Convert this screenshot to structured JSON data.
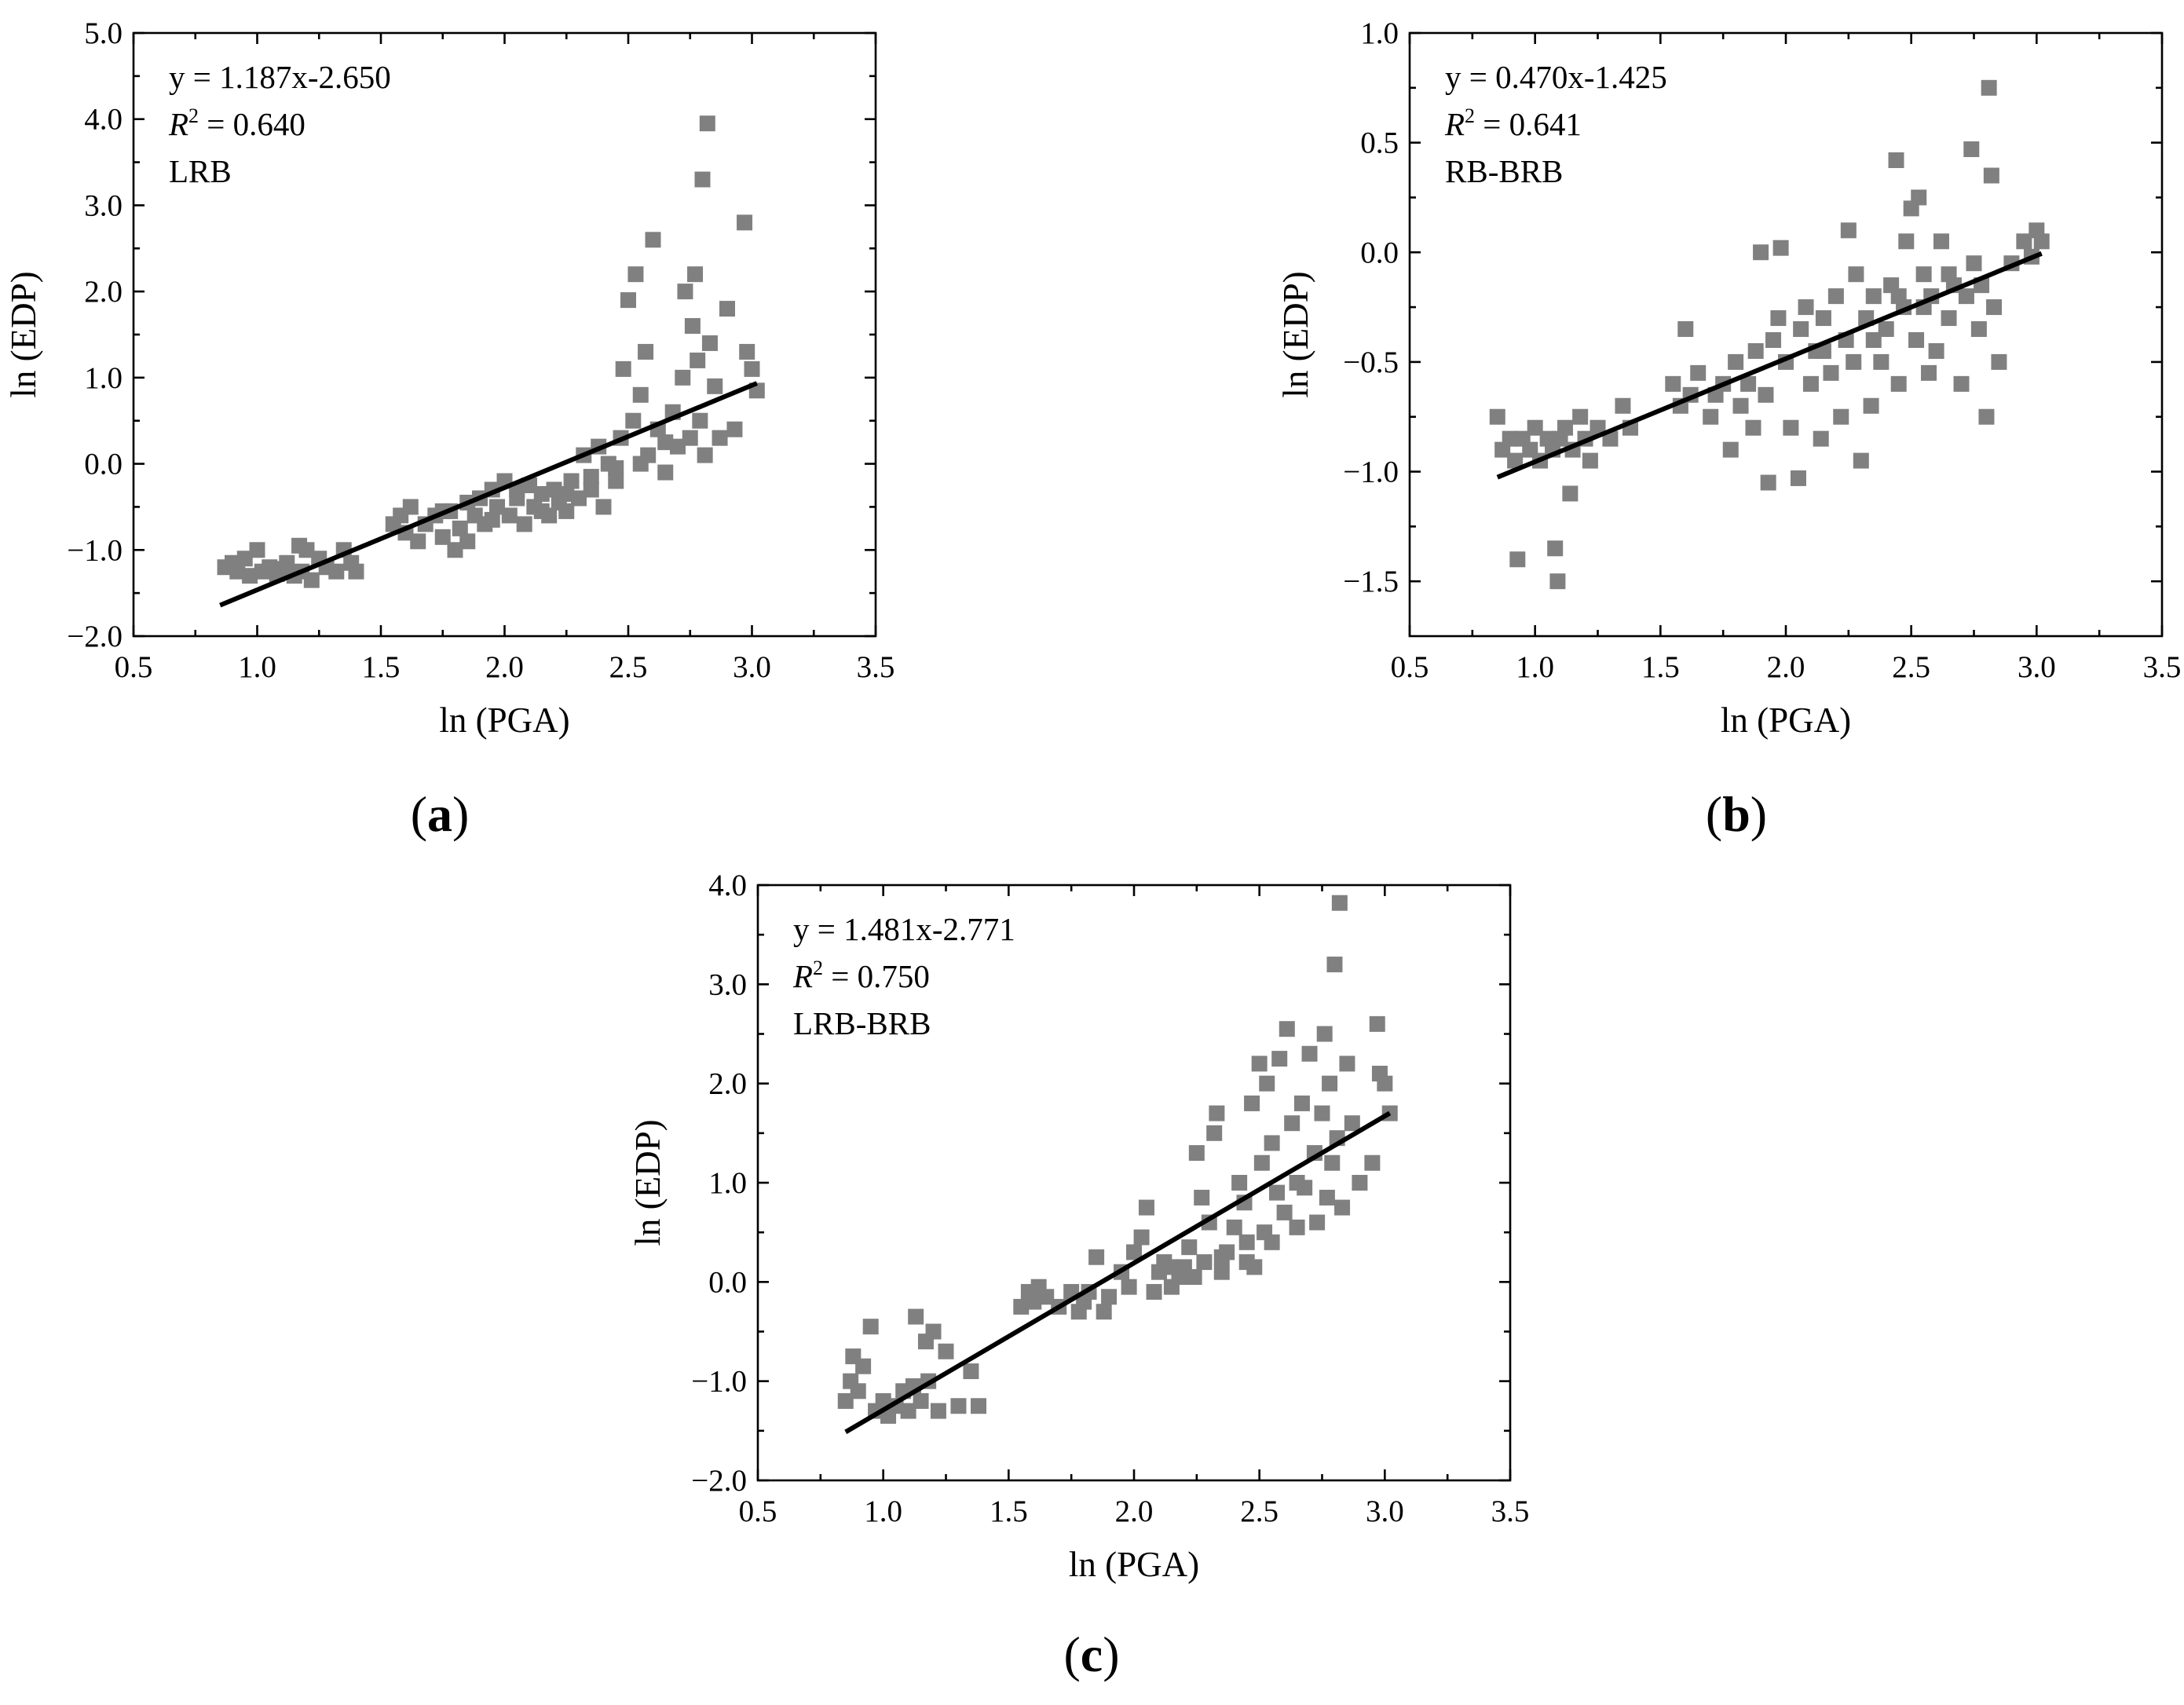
{
  "chart_data": [
    {
      "type": "scatter",
      "panel": "a",
      "caption_letter": "a",
      "xlabel": "ln (PGA)",
      "ylabel": "ln (EDP)",
      "xlim": [
        0.5,
        3.5
      ],
      "ylim": [
        -2.0,
        5.0
      ],
      "xticks": [
        0.5,
        1.0,
        1.5,
        2.0,
        2.5,
        3.0,
        3.5
      ],
      "yticks": [
        -2.0,
        -1.0,
        0.0,
        1.0,
        2.0,
        3.0,
        4.0,
        5.0
      ],
      "equation": "y = 1.187x-2.650",
      "r2_value": " = 0.640",
      "label": "LRB",
      "fit": {
        "slope": 1.187,
        "intercept": -2.65,
        "x_range": [
          0.85,
          3.02
        ]
      },
      "marker_color": "#808080",
      "line_color": "#000000",
      "points": [
        [
          0.87,
          -1.2
        ],
        [
          0.9,
          -1.15
        ],
        [
          0.92,
          -1.25
        ],
        [
          0.95,
          -1.1
        ],
        [
          0.97,
          -1.3
        ],
        [
          1.0,
          -1.0
        ],
        [
          1.02,
          -1.25
        ],
        [
          1.05,
          -1.2
        ],
        [
          1.08,
          -1.28
        ],
        [
          1.1,
          -1.22
        ],
        [
          1.12,
          -1.15
        ],
        [
          1.15,
          -1.3
        ],
        [
          1.17,
          -0.95
        ],
        [
          1.18,
          -1.25
        ],
        [
          1.2,
          -1.0
        ],
        [
          1.22,
          -1.35
        ],
        [
          1.25,
          -1.1
        ],
        [
          1.28,
          -1.2
        ],
        [
          1.32,
          -1.25
        ],
        [
          1.35,
          -1.0
        ],
        [
          1.38,
          -1.15
        ],
        [
          1.4,
          -1.25
        ],
        [
          1.55,
          -0.7
        ],
        [
          1.58,
          -0.6
        ],
        [
          1.6,
          -0.8
        ],
        [
          1.62,
          -0.5
        ],
        [
          1.65,
          -0.9
        ],
        [
          1.68,
          -0.7
        ],
        [
          1.72,
          -0.6
        ],
        [
          1.75,
          -0.85
        ],
        [
          1.78,
          -0.55
        ],
        [
          1.8,
          -1.0
        ],
        [
          1.82,
          -0.75
        ],
        [
          1.85,
          -0.9
        ],
        [
          1.88,
          -0.6
        ],
        [
          1.9,
          -0.4
        ],
        [
          1.92,
          -0.7
        ],
        [
          1.95,
          -0.3
        ],
        [
          1.97,
          -0.5
        ],
        [
          2.0,
          -0.2
        ],
        [
          2.02,
          -0.6
        ],
        [
          2.05,
          -0.4
        ],
        [
          2.08,
          -0.7
        ],
        [
          2.1,
          -0.25
        ],
        [
          2.12,
          -0.5
        ],
        [
          2.15,
          -0.35
        ],
        [
          2.18,
          -0.6
        ],
        [
          2.2,
          -0.3
        ],
        [
          2.22,
          -0.45
        ],
        [
          2.25,
          -0.55
        ],
        [
          2.27,
          -0.2
        ],
        [
          2.3,
          -0.4
        ],
        [
          2.32,
          0.1
        ],
        [
          2.35,
          -0.3
        ],
        [
          2.38,
          0.2
        ],
        [
          2.4,
          -0.5
        ],
        [
          2.42,
          0.0
        ],
        [
          2.45,
          -0.2
        ],
        [
          2.47,
          0.3
        ],
        [
          2.48,
          1.1
        ],
        [
          2.5,
          1.9
        ],
        [
          2.52,
          0.5
        ],
        [
          2.53,
          2.2
        ],
        [
          2.55,
          0.8
        ],
        [
          2.57,
          1.3
        ],
        [
          2.58,
          0.1
        ],
        [
          2.6,
          2.6
        ],
        [
          2.62,
          0.4
        ],
        [
          2.65,
          -0.1
        ],
        [
          2.68,
          0.6
        ],
        [
          2.7,
          0.2
        ],
        [
          2.72,
          1.0
        ],
        [
          2.73,
          2.0
        ],
        [
          2.75,
          0.3
        ],
        [
          2.76,
          1.6
        ],
        [
          2.77,
          2.2
        ],
        [
          2.78,
          1.2
        ],
        [
          2.79,
          0.5
        ],
        [
          2.8,
          3.3
        ],
        [
          2.81,
          0.1
        ],
        [
          2.82,
          3.95
        ],
        [
          2.83,
          1.4
        ],
        [
          2.85,
          0.9
        ],
        [
          2.87,
          0.3
        ],
        [
          2.9,
          1.8
        ],
        [
          2.93,
          0.4
        ],
        [
          2.97,
          2.8
        ],
        [
          2.98,
          1.3
        ],
        [
          3.0,
          1.1
        ],
        [
          3.02,
          0.85
        ],
        [
          2.05,
          -0.3
        ],
        [
          2.15,
          -0.55
        ],
        [
          2.25,
          -0.35
        ],
        [
          2.35,
          -0.15
        ],
        [
          2.45,
          -0.05
        ],
        [
          2.55,
          0.0
        ],
        [
          2.65,
          0.25
        ],
        [
          1.95,
          -0.65
        ],
        [
          1.85,
          -0.45
        ],
        [
          1.75,
          -0.55
        ]
      ]
    },
    {
      "type": "scatter",
      "panel": "b",
      "caption_letter": "b",
      "xlabel": "ln (PGA)",
      "ylabel": "ln (EDP)",
      "xlim": [
        0.5,
        3.5
      ],
      "ylim": [
        -1.75,
        1.0
      ],
      "xticks": [
        0.5,
        1.0,
        1.5,
        2.0,
        2.5,
        3.0,
        3.5
      ],
      "yticks": [
        -1.5,
        -1.0,
        -0.5,
        0.0,
        0.5,
        1.0
      ],
      "equation": "y = 0.470x-1.425",
      "r2_value": " = 0.641",
      "label": "RB-BRB",
      "fit": {
        "slope": 0.47,
        "intercept": -1.425,
        "x_range": [
          0.85,
          3.02
        ]
      },
      "marker_color": "#808080",
      "line_color": "#000000",
      "points": [
        [
          0.85,
          -0.75
        ],
        [
          0.87,
          -0.9
        ],
        [
          0.9,
          -0.85
        ],
        [
          0.92,
          -0.95
        ],
        [
          0.93,
          -1.4
        ],
        [
          0.95,
          -0.85
        ],
        [
          0.98,
          -0.9
        ],
        [
          1.0,
          -0.8
        ],
        [
          1.02,
          -0.95
        ],
        [
          1.05,
          -0.85
        ],
        [
          1.07,
          -0.9
        ],
        [
          1.08,
          -1.35
        ],
        [
          1.09,
          -1.5
        ],
        [
          1.1,
          -0.85
        ],
        [
          1.12,
          -0.8
        ],
        [
          1.14,
          -1.1
        ],
        [
          1.15,
          -0.9
        ],
        [
          1.18,
          -0.75
        ],
        [
          1.2,
          -0.85
        ],
        [
          1.22,
          -0.95
        ],
        [
          1.25,
          -0.8
        ],
        [
          1.3,
          -0.85
        ],
        [
          1.35,
          -0.7
        ],
        [
          1.38,
          -0.8
        ],
        [
          1.55,
          -0.6
        ],
        [
          1.58,
          -0.7
        ],
        [
          1.6,
          -0.35
        ],
        [
          1.62,
          -0.65
        ],
        [
          1.65,
          -0.55
        ],
        [
          1.7,
          -0.75
        ],
        [
          1.72,
          -0.65
        ],
        [
          1.75,
          -0.6
        ],
        [
          1.78,
          -0.9
        ],
        [
          1.8,
          -0.5
        ],
        [
          1.82,
          -0.7
        ],
        [
          1.85,
          -0.6
        ],
        [
          1.87,
          -0.8
        ],
        [
          1.88,
          -0.45
        ],
        [
          1.9,
          0.0
        ],
        [
          1.92,
          -0.65
        ],
        [
          1.93,
          -1.05
        ],
        [
          1.95,
          -0.4
        ],
        [
          1.97,
          -0.3
        ],
        [
          1.98,
          0.02
        ],
        [
          2.0,
          -0.5
        ],
        [
          2.02,
          -0.8
        ],
        [
          2.05,
          -1.03
        ],
        [
          2.06,
          -0.35
        ],
        [
          2.08,
          -0.25
        ],
        [
          2.1,
          -0.6
        ],
        [
          2.12,
          -0.45
        ],
        [
          2.14,
          -0.85
        ],
        [
          2.15,
          -0.3
        ],
        [
          2.18,
          -0.55
        ],
        [
          2.2,
          -0.2
        ],
        [
          2.22,
          -0.75
        ],
        [
          2.24,
          -0.4
        ],
        [
          2.25,
          0.1
        ],
        [
          2.27,
          -0.5
        ],
        [
          2.28,
          -0.1
        ],
        [
          2.3,
          -0.95
        ],
        [
          2.32,
          -0.3
        ],
        [
          2.34,
          -0.7
        ],
        [
          2.35,
          -0.2
        ],
        [
          2.38,
          -0.5
        ],
        [
          2.4,
          -0.35
        ],
        [
          2.42,
          -0.15
        ],
        [
          2.44,
          0.42
        ],
        [
          2.45,
          -0.6
        ],
        [
          2.47,
          -0.25
        ],
        [
          2.48,
          0.05
        ],
        [
          2.5,
          0.2
        ],
        [
          2.52,
          -0.4
        ],
        [
          2.53,
          0.25
        ],
        [
          2.55,
          -0.1
        ],
        [
          2.57,
          -0.55
        ],
        [
          2.58,
          -0.2
        ],
        [
          2.6,
          -0.45
        ],
        [
          2.62,
          0.05
        ],
        [
          2.65,
          -0.3
        ],
        [
          2.67,
          -0.15
        ],
        [
          2.7,
          -0.6
        ],
        [
          2.72,
          -0.2
        ],
        [
          2.74,
          0.47
        ],
        [
          2.75,
          -0.05
        ],
        [
          2.77,
          -0.35
        ],
        [
          2.78,
          -0.15
        ],
        [
          2.8,
          -0.75
        ],
        [
          2.81,
          0.75
        ],
        [
          2.82,
          0.35
        ],
        [
          2.83,
          -0.25
        ],
        [
          2.85,
          -0.5
        ],
        [
          2.9,
          -0.05
        ],
        [
          2.95,
          0.05
        ],
        [
          2.98,
          -0.02
        ],
        [
          3.0,
          0.1
        ],
        [
          3.02,
          0.05
        ],
        [
          2.35,
          -0.4
        ],
        [
          2.45,
          -0.2
        ],
        [
          2.55,
          -0.25
        ],
        [
          2.15,
          -0.45
        ],
        [
          2.65,
          -0.1
        ]
      ]
    },
    {
      "type": "scatter",
      "panel": "c",
      "caption_letter": "c",
      "xlabel": "ln (PGA)",
      "ylabel": "ln (EDP)",
      "xlim": [
        0.5,
        3.5
      ],
      "ylim": [
        -2.0,
        4.0
      ],
      "xticks": [
        0.5,
        1.0,
        1.5,
        2.0,
        2.5,
        3.0,
        3.5
      ],
      "yticks": [
        -2.0,
        -1.0,
        0.0,
        1.0,
        2.0,
        3.0,
        4.0
      ],
      "equation": "y = 1.481x-2.771",
      "r2_value": " = 0.750",
      "label": "LRB-BRB",
      "fit": {
        "slope": 1.481,
        "intercept": -2.771,
        "x_range": [
          0.85,
          3.02
        ]
      },
      "marker_color": "#808080",
      "line_color": "#000000",
      "points": [
        [
          0.85,
          -1.2
        ],
        [
          0.87,
          -1.0
        ],
        [
          0.88,
          -0.75
        ],
        [
          0.9,
          -1.1
        ],
        [
          0.92,
          -0.85
        ],
        [
          0.95,
          -0.45
        ],
        [
          0.97,
          -1.3
        ],
        [
          1.0,
          -1.2
        ],
        [
          1.02,
          -1.35
        ],
        [
          1.05,
          -1.25
        ],
        [
          1.08,
          -1.1
        ],
        [
          1.1,
          -1.3
        ],
        [
          1.12,
          -1.05
        ],
        [
          1.13,
          -0.35
        ],
        [
          1.15,
          -1.2
        ],
        [
          1.17,
          -0.6
        ],
        [
          1.18,
          -1.0
        ],
        [
          1.2,
          -0.5
        ],
        [
          1.22,
          -1.3
        ],
        [
          1.25,
          -0.7
        ],
        [
          1.3,
          -1.25
        ],
        [
          1.35,
          -0.9
        ],
        [
          1.38,
          -1.25
        ],
        [
          1.55,
          -0.25
        ],
        [
          1.58,
          -0.1
        ],
        [
          1.6,
          -0.2
        ],
        [
          1.62,
          -0.05
        ],
        [
          1.65,
          -0.15
        ],
        [
          1.7,
          -0.25
        ],
        [
          1.75,
          -0.1
        ],
        [
          1.78,
          -0.3
        ],
        [
          1.8,
          -0.2
        ],
        [
          1.82,
          -0.1
        ],
        [
          1.85,
          0.25
        ],
        [
          1.88,
          -0.3
        ],
        [
          1.9,
          -0.15
        ],
        [
          1.95,
          0.1
        ],
        [
          1.98,
          -0.05
        ],
        [
          2.0,
          0.3
        ],
        [
          2.03,
          0.45
        ],
        [
          2.05,
          0.75
        ],
        [
          2.08,
          -0.1
        ],
        [
          2.1,
          0.1
        ],
        [
          2.12,
          0.2
        ],
        [
          2.15,
          -0.05
        ],
        [
          2.18,
          0.05
        ],
        [
          2.2,
          0.15
        ],
        [
          2.22,
          0.35
        ],
        [
          2.24,
          0.05
        ],
        [
          2.25,
          1.3
        ],
        [
          2.27,
          0.85
        ],
        [
          2.28,
          0.2
        ],
        [
          2.3,
          0.6
        ],
        [
          2.32,
          1.5
        ],
        [
          2.33,
          1.7
        ],
        [
          2.35,
          0.1
        ],
        [
          2.37,
          0.3
        ],
        [
          2.4,
          0.55
        ],
        [
          2.42,
          1.0
        ],
        [
          2.44,
          0.8
        ],
        [
          2.45,
          0.4
        ],
        [
          2.47,
          1.8
        ],
        [
          2.48,
          0.15
        ],
        [
          2.5,
          2.2
        ],
        [
          2.51,
          1.2
        ],
        [
          2.52,
          0.5
        ],
        [
          2.53,
          2.0
        ],
        [
          2.55,
          1.4
        ],
        [
          2.57,
          0.9
        ],
        [
          2.58,
          2.25
        ],
        [
          2.6,
          0.7
        ],
        [
          2.61,
          2.55
        ],
        [
          2.63,
          1.6
        ],
        [
          2.65,
          1.0
        ],
        [
          2.67,
          1.8
        ],
        [
          2.68,
          0.95
        ],
        [
          2.7,
          2.3
        ],
        [
          2.72,
          1.3
        ],
        [
          2.73,
          0.6
        ],
        [
          2.75,
          1.7
        ],
        [
          2.76,
          2.5
        ],
        [
          2.77,
          0.85
        ],
        [
          2.78,
          2.0
        ],
        [
          2.79,
          1.2
        ],
        [
          2.8,
          3.2
        ],
        [
          2.81,
          1.45
        ],
        [
          2.82,
          3.82
        ],
        [
          2.83,
          0.75
        ],
        [
          2.85,
          2.2
        ],
        [
          2.87,
          1.6
        ],
        [
          2.9,
          1.0
        ],
        [
          2.95,
          1.2
        ],
        [
          2.97,
          2.6
        ],
        [
          2.98,
          2.1
        ],
        [
          3.0,
          2.0
        ],
        [
          3.02,
          1.7
        ],
        [
          2.35,
          0.25
        ],
        [
          2.45,
          0.2
        ],
        [
          2.55,
          0.4
        ],
        [
          2.65,
          0.55
        ],
        [
          2.15,
          0.15
        ]
      ]
    }
  ]
}
